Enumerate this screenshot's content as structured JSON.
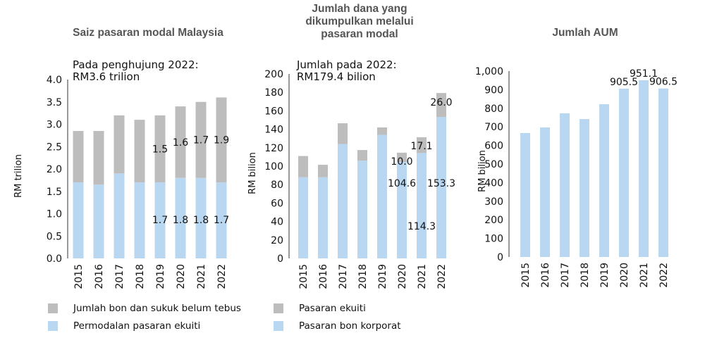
{
  "colors": {
    "grey": "#bdbdbd",
    "blue": "#b9d7f1"
  },
  "chart_data": [
    {
      "type": "bar",
      "stacked": true,
      "title": "Saiz pasaran modal Malaysia",
      "annotation": "Pada penghujung 2022:\nRM3.6 trilion",
      "ylabel": "RM trilion",
      "ylim": [
        0,
        4.0
      ],
      "yticks": [
        "0.0",
        "0.5",
        "1.0",
        "1.5",
        "2.0",
        "2.5",
        "3.0",
        "3.5",
        "4.0"
      ],
      "categories": [
        "2015",
        "2016",
        "2017",
        "2018",
        "2019",
        "2020",
        "2021",
        "2022"
      ],
      "series": [
        {
          "name": "Permodalan pasaran ekuiti",
          "color": "blue",
          "values": [
            1.7,
            1.65,
            1.9,
            1.7,
            1.7,
            1.8,
            1.8,
            1.7
          ],
          "labels": [
            "",
            "",
            "",
            "",
            "1.7",
            "1.8",
            "1.8",
            "1.7"
          ]
        },
        {
          "name": "Jumlah bon dan sukuk belum tebus",
          "color": "grey",
          "values": [
            1.15,
            1.2,
            1.3,
            1.4,
            1.5,
            1.6,
            1.7,
            1.9
          ],
          "labels": [
            "",
            "",
            "",
            "",
            "1.5",
            "1.6",
            "1.7",
            "1.9"
          ]
        }
      ]
    },
    {
      "type": "bar",
      "stacked": true,
      "title": "Jumlah dana yang\ndikumpulkan melalui\npasaran modal",
      "annotation": "Jumlah pada 2022:\nRM179.4 bilion",
      "ylabel": "RM bilion",
      "ylim": [
        0,
        200
      ],
      "yticks": [
        "0",
        "20",
        "40",
        "60",
        "80",
        "100",
        "120",
        "140",
        "160",
        "180",
        "200"
      ],
      "categories": [
        "2015",
        "2016",
        "2017",
        "2018",
        "2019",
        "2020",
        "2021",
        "2022"
      ],
      "series": [
        {
          "name": "Pasaran bon korporat",
          "color": "blue",
          "values": [
            88,
            88,
            124,
            106,
            134,
            104.6,
            114.3,
            153.3
          ],
          "labels": [
            "",
            "",
            "",
            "",
            "",
            "104.6",
            "114.3",
            "153.3"
          ]
        },
        {
          "name": "Pasaran ekuiti",
          "color": "grey",
          "values": [
            23,
            13.5,
            22.5,
            11.5,
            8,
            10.0,
            17.1,
            26.0
          ],
          "labels": [
            "",
            "",
            "",
            "",
            "",
            "10.0",
            "17.1",
            "26.0"
          ]
        }
      ]
    },
    {
      "type": "bar",
      "stacked": false,
      "title": "Jumlah AUM",
      "annotation": "",
      "ylabel": "RM bilion",
      "ylim": [
        0,
        1000
      ],
      "yticks": [
        "0",
        "100",
        "200",
        "300",
        "400",
        "500",
        "600",
        "700",
        "800",
        "900",
        "1,000"
      ],
      "categories": [
        "2015",
        "2016",
        "2017",
        "2018",
        "2019",
        "2020",
        "2021",
        "2022"
      ],
      "series": [
        {
          "name": "AUM",
          "color": "blue",
          "values": [
            667,
            697,
            773,
            742,
            822,
            905.5,
            951.1,
            906.5
          ],
          "labels": [
            "",
            "",
            "",
            "",
            "",
            "905.5",
            "951.1",
            "906.5"
          ]
        }
      ]
    }
  ],
  "legend": [
    {
      "label": "Jumlah bon dan sukuk belum tebus",
      "color": "grey"
    },
    {
      "label": "Permodalan pasaran ekuiti",
      "color": "blue"
    },
    {
      "label": "Pasaran ekuiti",
      "color": "grey"
    },
    {
      "label": "Pasaran bon korporat",
      "color": "blue"
    }
  ]
}
